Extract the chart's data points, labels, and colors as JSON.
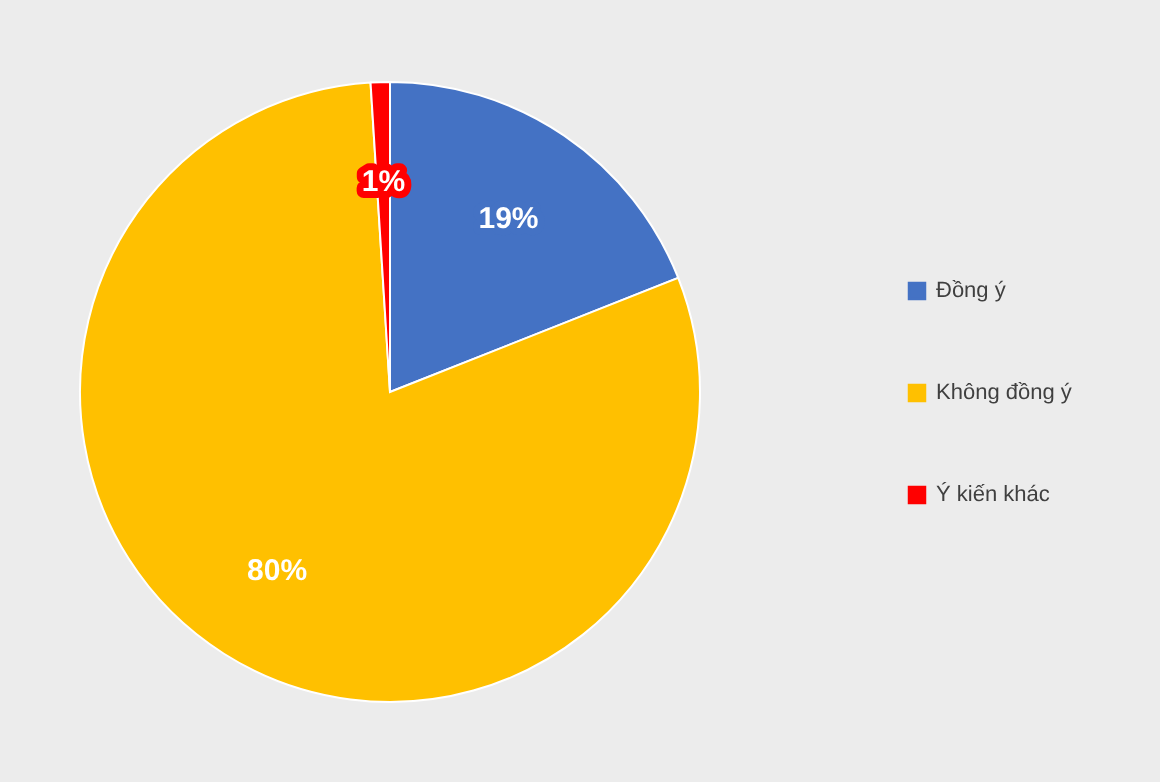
{
  "chart_data": {
    "type": "pie",
    "categories": [
      "Đồng ý",
      "Không đồng ý",
      "Ý kiến khác"
    ],
    "values": [
      19,
      80,
      1
    ],
    "colors": [
      "#4472c4",
      "#ffc000",
      "#ff0000"
    ],
    "value_labels": [
      "19%",
      "80%",
      "1%"
    ],
    "legend": "right"
  }
}
